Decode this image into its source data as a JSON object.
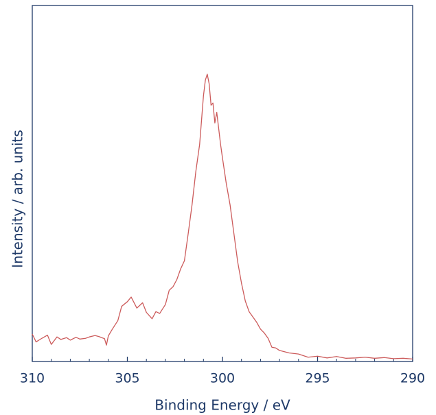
{
  "chart_data": {
    "type": "line",
    "xlabel": "Binding Energy / eV",
    "ylabel": "Intensity / arb. units",
    "color": "#cc5b5b",
    "xlim": [
      310,
      290
    ],
    "xticks": [
      310,
      305,
      300,
      295,
      290
    ],
    "xminorticks": [
      309,
      308,
      307,
      306,
      304,
      303,
      302,
      301,
      299,
      298,
      297,
      296,
      294,
      293,
      292,
      291
    ],
    "ylim": [
      0,
      100
    ],
    "x": [
      310,
      309.8,
      309.5,
      309.2,
      309,
      308.7,
      308.5,
      308.2,
      308,
      307.7,
      307.5,
      307.2,
      307,
      306.7,
      306.5,
      306.2,
      306.1,
      306,
      305.8,
      305.5,
      305.3,
      305,
      304.8,
      304.5,
      304.2,
      304,
      303.7,
      303.5,
      303.3,
      303,
      302.8,
      302.6,
      302.4,
      302.2,
      302,
      301.8,
      301.6,
      301.4,
      301.2,
      301,
      300.9,
      300.8,
      300.7,
      300.6,
      300.5,
      300.4,
      300.3,
      300.1,
      300,
      299.8,
      299.6,
      299.4,
      299.2,
      299,
      298.8,
      298.6,
      298.4,
      298.2,
      298,
      297.8,
      297.6,
      297.4,
      297.2,
      297,
      296.5,
      296,
      295.5,
      295,
      294.5,
      294,
      293.5,
      293,
      292.5,
      292,
      291.5,
      291,
      290.5,
      290
    ],
    "values": [
      7.7,
      5.5,
      6.5,
      7.4,
      4.8,
      6.9,
      6.2,
      6.7,
      6.0,
      6.8,
      6.3,
      6.5,
      6.9,
      7.3,
      7.0,
      6.4,
      4.6,
      7.2,
      9.0,
      11.5,
      15.5,
      16.8,
      18.1,
      15.0,
      16.5,
      13.8,
      12.0,
      14.0,
      13.5,
      16.0,
      20.0,
      21.0,
      23.0,
      26.0,
      28.3,
      36.0,
      44.0,
      53.4,
      61.0,
      74.6,
      79.0,
      80.7,
      78.0,
      72.0,
      72.6,
      67.0,
      70.0,
      61.0,
      57.2,
      50.0,
      44.0,
      36.0,
      28.0,
      22.0,
      17.0,
      14.0,
      12.5,
      11.0,
      9.1,
      8.0,
      6.5,
      4.0,
      3.8,
      3.1,
      2.4,
      2.1,
      1.2,
      1.5,
      1.0,
      1.4,
      0.9,
      1.0,
      1.2,
      0.9,
      1.1,
      0.8,
      0.9,
      0.7
    ]
  }
}
